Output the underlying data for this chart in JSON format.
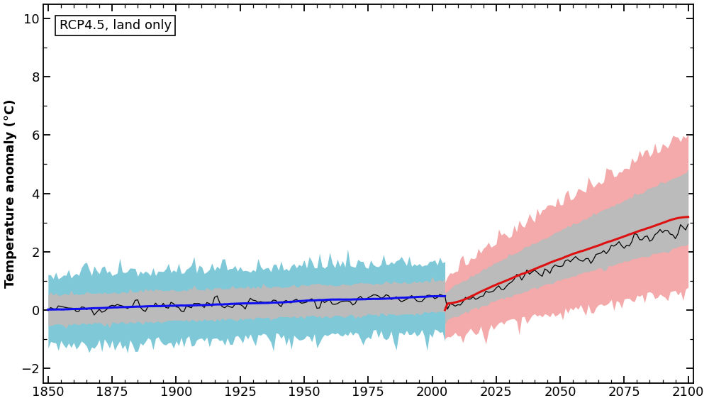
{
  "title_text": "RCP4.5, land only",
  "ylabel": "Temperature anomaly (°C)",
  "xlim": [
    1848,
    2102
  ],
  "ylim": [
    -2.5,
    10.5
  ],
  "yticks": [
    -2,
    0,
    2,
    4,
    6,
    8,
    10
  ],
  "xticks": [
    1850,
    1875,
    1900,
    1925,
    1950,
    1975,
    2000,
    2025,
    2050,
    2075,
    2100
  ],
  "hist_end": 2005,
  "proj_start": 2005,
  "cyan_color": "#7EC8D8",
  "pink_color": "#F4AAAA",
  "gray_color": "#BBBBBB",
  "blue_color": "#1010EE",
  "red_color": "#DD1111",
  "black_color": "#000000",
  "background_color": "#FFFFFF",
  "figsize": [
    10.0,
    5.68
  ],
  "dpi": 100
}
